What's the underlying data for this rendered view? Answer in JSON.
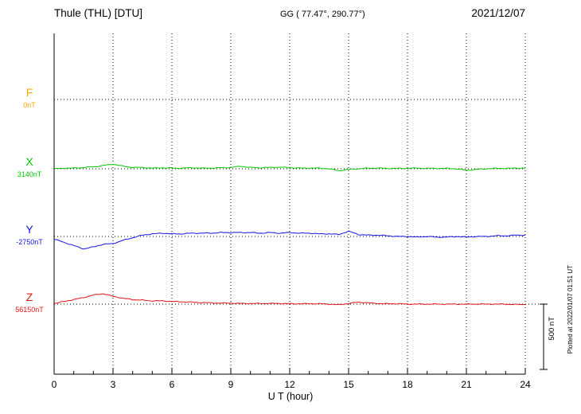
{
  "header": {
    "station": "Thule (THL)  [DTU]",
    "coordinates": "GG ( 77.47°, 290.77°)",
    "date": "2021/12/07"
  },
  "footer": {
    "xlabel": "U T (hour)",
    "scale_bar_label": "500 nT",
    "plotted_at": "Plotted at 2022/01/07 01:51 UT"
  },
  "chart_data": {
    "type": "line",
    "title": "Thule (THL) [DTU] magnetogram 2021/12/07",
    "xlabel": "U T (hour)",
    "xlim": [
      0,
      24
    ],
    "x_ticks": [
      0,
      3,
      6,
      9,
      12,
      15,
      18,
      21,
      24
    ],
    "grid": "dotted",
    "scale_bar_nT": 500,
    "x": [
      0,
      0.5,
      1,
      1.5,
      2,
      2.5,
      3,
      3.5,
      4,
      4.5,
      5,
      5.5,
      6,
      6.5,
      7,
      7.5,
      8,
      8.5,
      9,
      9.5,
      10,
      10.5,
      11,
      11.5,
      12,
      12.5,
      13,
      13.5,
      14,
      14.5,
      15,
      15.5,
      16,
      16.5,
      17,
      17.5,
      18,
      18.5,
      19,
      19.5,
      20,
      20.5,
      21,
      21.5,
      22,
      22.5,
      23,
      23.5,
      24
    ],
    "series": [
      {
        "name": "F",
        "baseline_label": "0nT",
        "baseline_nT": 0,
        "color": "#ffa500",
        "trace_visible": false,
        "values": [
          0,
          0,
          0,
          0,
          0,
          0,
          0,
          0,
          0,
          0,
          0,
          0,
          0,
          0,
          0,
          0,
          0,
          0,
          0,
          0,
          0,
          0,
          0,
          0,
          0,
          0,
          0,
          0,
          0,
          0,
          0,
          0,
          0,
          0,
          0,
          0,
          0,
          0,
          0,
          0,
          0,
          0,
          0,
          0,
          0,
          0,
          0,
          0,
          0
        ]
      },
      {
        "name": "X",
        "baseline_label": "3140nT",
        "baseline_nT": 3140,
        "color": "#00c800",
        "trace_visible": true,
        "values": [
          0,
          5,
          5,
          10,
          15,
          25,
          35,
          20,
          10,
          10,
          5,
          8,
          5,
          5,
          8,
          5,
          5,
          8,
          10,
          20,
          10,
          8,
          10,
          12,
          8,
          5,
          5,
          5,
          0,
          -15,
          -5,
          0,
          5,
          5,
          3,
          3,
          3,
          5,
          3,
          3,
          3,
          0,
          -12,
          -5,
          0,
          3,
          3,
          5,
          5
        ]
      },
      {
        "name": "Y",
        "baseline_label": "-2750nT",
        "baseline_nT": -2750,
        "color": "#1414e6",
        "trace_visible": true,
        "values": [
          -20,
          -45,
          -70,
          -95,
          -80,
          -60,
          -55,
          -30,
          -10,
          10,
          20,
          25,
          20,
          20,
          25,
          25,
          25,
          30,
          30,
          30,
          30,
          25,
          30,
          25,
          30,
          25,
          25,
          20,
          20,
          15,
          40,
          15,
          10,
          10,
          5,
          0,
          0,
          -5,
          0,
          -5,
          -5,
          0,
          -5,
          0,
          0,
          5,
          5,
          10,
          10
        ]
      },
      {
        "name": "Z",
        "baseline_label": "56150nT",
        "baseline_nT": 56150,
        "color": "#e61414",
        "trace_visible": true,
        "values": [
          5,
          20,
          35,
          50,
          70,
          80,
          60,
          45,
          35,
          30,
          25,
          25,
          20,
          18,
          15,
          12,
          10,
          8,
          8,
          5,
          5,
          5,
          5,
          5,
          3,
          3,
          3,
          3,
          0,
          -5,
          5,
          15,
          10,
          5,
          3,
          3,
          0,
          0,
          0,
          0,
          0,
          0,
          0,
          0,
          0,
          0,
          0,
          -3,
          -3
        ]
      }
    ]
  }
}
